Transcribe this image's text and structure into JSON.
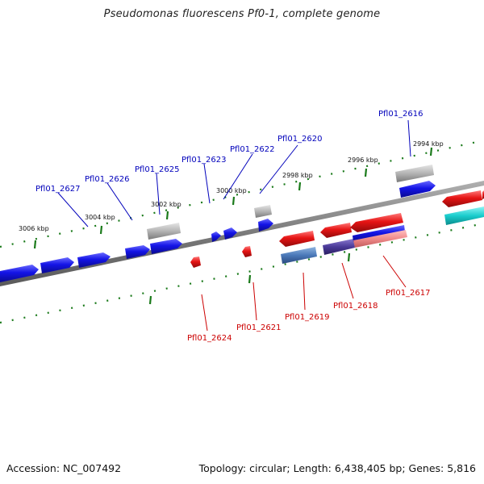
{
  "title": "Pseudomonas fluorescens Pf0-1, complete genome",
  "footer": {
    "accession": "Accession: NC_007492",
    "summary": "Topology: circular; Length: 6,438,405 bp; Genes: 5,816"
  },
  "colors": {
    "forward_gene": "#1414e6",
    "reverse_gene": "#e61414",
    "pseudo_gene": "#b4b4b4",
    "forward_label": "#0000bb",
    "reverse_label": "#cc0000",
    "tick": "#1a7a1a",
    "backbone": "#8a8a8a"
  },
  "kbp_labels": [
    "2994 kbp",
    "2996 kbp",
    "2998 kbp",
    "3000 kbp",
    "3002 kbp",
    "3004 kbp",
    "3006 kbp"
  ],
  "forward_gene_labels": [
    "Pfl01_2616",
    "Pfl01_2620",
    "Pfl01_2622",
    "Pfl01_2623",
    "Pfl01_2625",
    "Pfl01_2626",
    "Pfl01_2627"
  ],
  "reverse_gene_labels": [
    "Pfl01_2617",
    "Pfl01_2618",
    "Pfl01_2619",
    "Pfl01_2621",
    "Pfl01_2624"
  ]
}
